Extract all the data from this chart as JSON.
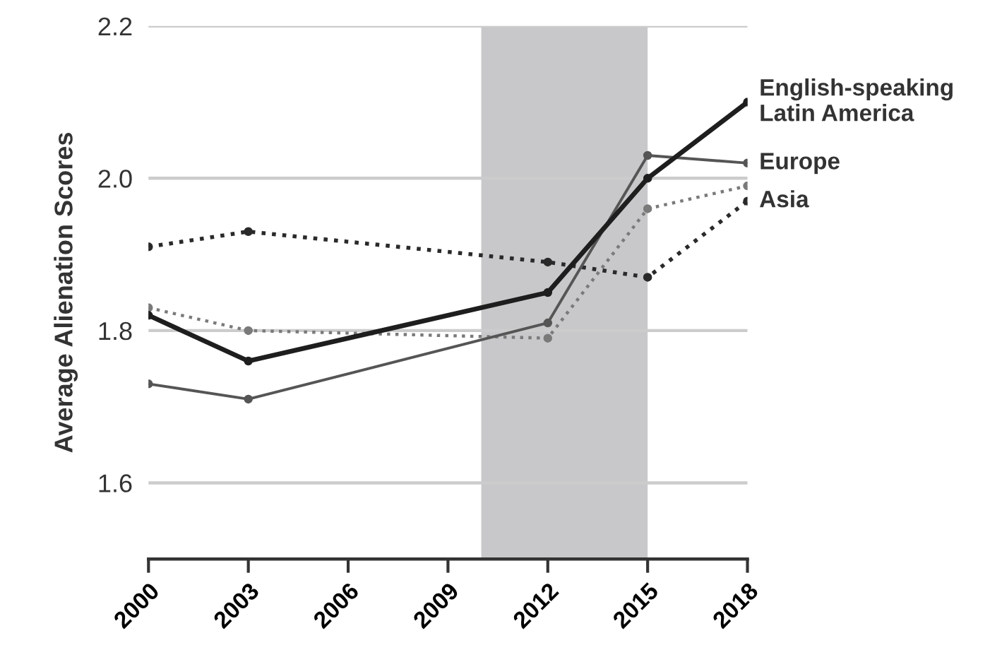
{
  "chart_data": {
    "type": "line",
    "ylabel": "Average Alienation Scores",
    "x": [
      2000,
      2003,
      2012,
      2015,
      2018
    ],
    "series": [
      {
        "name": "English-speaking\nLatin America",
        "color": "#1e1e1e",
        "values": [
          1.82,
          1.76,
          1.85,
          2.0,
          2.1
        ],
        "line_style": "solid"
      },
      {
        "name": "Europe",
        "color": "#555555",
        "values": [
          1.73,
          1.71,
          1.81,
          2.03,
          2.02
        ],
        "line_style": "solid"
      },
      {
        "name": "Asia",
        "color": "#2a2a2a",
        "values": [
          1.91,
          1.93,
          1.89,
          1.87,
          1.97
        ],
        "line_style": "dotted"
      },
      {
        "color": "#7a7a7a",
        "values": [
          1.83,
          1.8,
          1.79,
          1.96,
          1.99
        ],
        "line_style": "dotted"
      }
    ],
    "xlim": [
      2000,
      2018
    ],
    "xticks": [
      2000,
      2003,
      2006,
      2009,
      2012,
      2015,
      2018
    ],
    "ylim": [
      1.5,
      2.2
    ],
    "yticks": [
      1.6,
      1.8,
      {
        "value": 2.0,
        "label": "2.0"
      },
      2.2
    ],
    "bands": [
      {
        "axis": "x",
        "from": 2010,
        "to": 2015,
        "color": "#c8c8ca"
      }
    ],
    "grid": "y",
    "marker": "circle",
    "legend": false
  }
}
